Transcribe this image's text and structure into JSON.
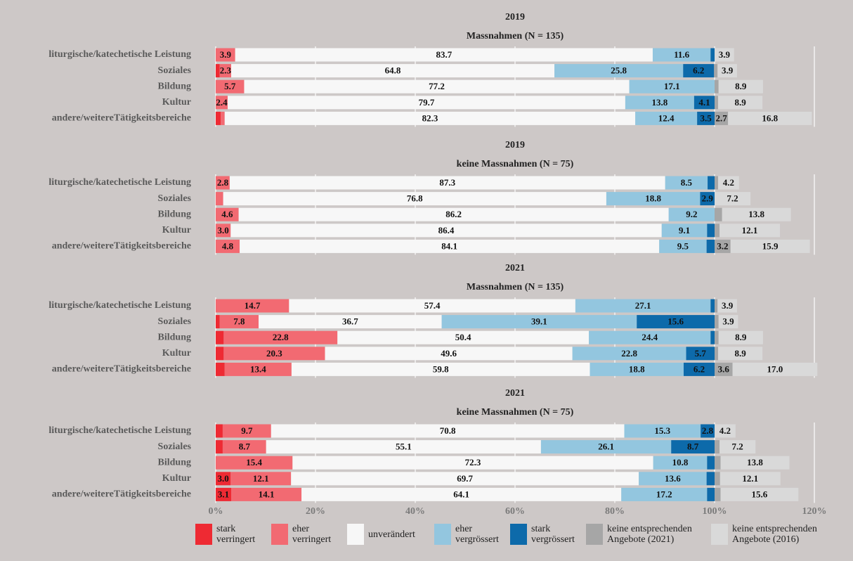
{
  "chart_data": {
    "type": "bar",
    "orientation": "horizontal",
    "stacked": true,
    "grid": true,
    "categories": [
      "liturgische/katechetische Leistung",
      "Soziales",
      "Bildung",
      "Kultur",
      "andere/weitereTätigkeitsbereiche"
    ],
    "xlim": [
      0,
      120
    ],
    "xticks": [
      {
        "value": 0,
        "label": "0%"
      },
      {
        "value": 20,
        "label": "20%"
      },
      {
        "value": 40,
        "label": "40%"
      },
      {
        "value": 60,
        "label": "60%"
      },
      {
        "value": 80,
        "label": "80%"
      },
      {
        "value": 100,
        "label": "100%"
      },
      {
        "value": 120,
        "label": "120%"
      }
    ],
    "series": [
      {
        "name": "stark verringert",
        "color": "#ee2a33"
      },
      {
        "name": "eher verringert",
        "color": "#f26a72"
      },
      {
        "name": "unverändert",
        "color": "#f7f7f7"
      },
      {
        "name": "eher vergrössert",
        "color": "#93c6df"
      },
      {
        "name": "stark vergrössert",
        "color": "#0d6aaa"
      },
      {
        "name": "keine entsprechenden Angebote (2021)",
        "color": "#a6a6a6"
      },
      {
        "name": "keine entsprechenden Angebote (2016)",
        "color": "#d9d9d9"
      }
    ],
    "panels": [
      {
        "title": "2019",
        "subtitle": "Massnahmen (N = 135)",
        "series": [
          {
            "values": [
              0,
              0.8,
              0,
              0,
              1.0
            ],
            "value_labels": [
              null,
              null,
              null,
              null,
              null
            ]
          },
          {
            "values": [
              3.9,
              2.3,
              5.7,
              2.4,
              0.8
            ],
            "value_labels": [
              "3.9",
              "2.3",
              "5.7",
              "2.4",
              null
            ]
          },
          {
            "values": [
              83.7,
              64.8,
              77.2,
              79.7,
              82.3
            ],
            "value_labels": [
              "83.7",
              "64.8",
              "77.2",
              "79.7",
              "82.3"
            ]
          },
          {
            "values": [
              11.6,
              25.8,
              17.1,
              13.8,
              12.4
            ],
            "value_labels": [
              "11.6",
              "25.8",
              "17.1",
              "13.8",
              "12.4"
            ]
          },
          {
            "values": [
              0.8,
              6.2,
              0,
              4.1,
              3.5
            ],
            "value_labels": [
              null,
              "6.2",
              null,
              "4.1",
              "3.5"
            ]
          },
          {
            "values": [
              0,
              0.7,
              0.8,
              0.7,
              2.7
            ],
            "value_labels": [
              null,
              null,
              null,
              null,
              "2.7"
            ]
          },
          {
            "values": [
              3.9,
              3.9,
              8.9,
              8.9,
              16.8
            ],
            "value_labels": [
              "3.9",
              "3.9",
              "8.9",
              "8.9",
              "16.8"
            ]
          }
        ]
      },
      {
        "title": "2019",
        "subtitle": "keine Massnahmen (N = 75)",
        "series": [
          {
            "values": [
              0,
              0,
              0,
              0,
              0
            ],
            "value_labels": [
              null,
              null,
              null,
              null,
              null
            ]
          },
          {
            "values": [
              2.8,
              1.5,
              4.6,
              3.0,
              4.8
            ],
            "value_labels": [
              "2.8",
              null,
              "4.6",
              "3.0",
              "4.8"
            ]
          },
          {
            "values": [
              87.3,
              76.8,
              86.2,
              86.4,
              84.1
            ],
            "value_labels": [
              "87.3",
              "76.8",
              "86.2",
              "86.4",
              "84.1"
            ]
          },
          {
            "values": [
              8.5,
              18.8,
              9.2,
              9.1,
              9.5
            ],
            "value_labels": [
              "8.5",
              "18.8",
              "9.2",
              "9.1",
              "9.5"
            ]
          },
          {
            "values": [
              1.4,
              2.9,
              0,
              1.5,
              1.6
            ],
            "value_labels": [
              null,
              "2.9",
              null,
              null,
              null
            ]
          },
          {
            "values": [
              0.7,
              0,
              1.5,
              1.0,
              3.2
            ],
            "value_labels": [
              null,
              null,
              null,
              null,
              "3.2"
            ]
          },
          {
            "values": [
              4.2,
              7.2,
              13.8,
              12.1,
              15.9
            ],
            "value_labels": [
              "4.2",
              "7.2",
              "13.8",
              "12.1",
              "15.9"
            ]
          }
        ]
      },
      {
        "title": "2021",
        "subtitle": "Massnahmen (N = 135)",
        "series": [
          {
            "values": [
              0,
              0.8,
              1.6,
              1.6,
              1.8
            ],
            "value_labels": [
              null,
              null,
              null,
              null,
              null
            ]
          },
          {
            "values": [
              14.7,
              7.8,
              22.8,
              20.3,
              13.4
            ],
            "value_labels": [
              "14.7",
              "7.8",
              "22.8",
              "20.3",
              "13.4"
            ]
          },
          {
            "values": [
              57.4,
              36.7,
              50.4,
              49.6,
              59.8
            ],
            "value_labels": [
              "57.4",
              "36.7",
              "50.4",
              "49.6",
              "59.8"
            ]
          },
          {
            "values": [
              27.1,
              39.1,
              24.4,
              22.8,
              18.8
            ],
            "value_labels": [
              "27.1",
              "39.1",
              "24.4",
              "22.8",
              "18.8"
            ]
          },
          {
            "values": [
              0.8,
              15.6,
              0.8,
              5.7,
              6.2
            ],
            "value_labels": [
              null,
              "15.6",
              null,
              "5.7",
              "6.2"
            ]
          },
          {
            "values": [
              0.6,
              0.8,
              0.8,
              0.7,
              3.6
            ],
            "value_labels": [
              null,
              null,
              null,
              null,
              "3.6"
            ]
          },
          {
            "values": [
              3.9,
              3.9,
              8.9,
              8.9,
              17.0
            ],
            "value_labels": [
              "3.9",
              "3.9",
              "8.9",
              "8.9",
              "17.0"
            ]
          }
        ]
      },
      {
        "title": "2021",
        "subtitle": "keine Massnahmen (N = 75)",
        "series": [
          {
            "values": [
              1.4,
              1.4,
              0,
              3.0,
              3.1
            ],
            "value_labels": [
              null,
              null,
              null,
              "3.0",
              "3.1"
            ]
          },
          {
            "values": [
              9.7,
              8.7,
              15.4,
              12.1,
              14.1
            ],
            "value_labels": [
              "9.7",
              "8.7",
              "15.4",
              "12.1",
              "14.1"
            ]
          },
          {
            "values": [
              70.8,
              55.1,
              72.3,
              69.7,
              64.1
            ],
            "value_labels": [
              "70.8",
              "55.1",
              "72.3",
              "69.7",
              "64.1"
            ]
          },
          {
            "values": [
              15.3,
              26.1,
              10.8,
              13.6,
              17.2
            ],
            "value_labels": [
              "15.3",
              "26.1",
              "10.8",
              "13.6",
              "17.2"
            ]
          },
          {
            "values": [
              2.8,
              8.7,
              1.5,
              1.6,
              1.5
            ],
            "value_labels": [
              "2.8",
              "8.7",
              null,
              null,
              null
            ]
          },
          {
            "values": [
              0,
              1.0,
              1.2,
              1.1,
              1.2
            ],
            "value_labels": [
              null,
              null,
              null,
              null,
              null
            ]
          },
          {
            "values": [
              4.2,
              7.2,
              13.8,
              12.1,
              15.6
            ],
            "value_labels": [
              "4.2",
              "7.2",
              "13.8",
              "12.1",
              "15.6"
            ]
          }
        ]
      }
    ]
  }
}
